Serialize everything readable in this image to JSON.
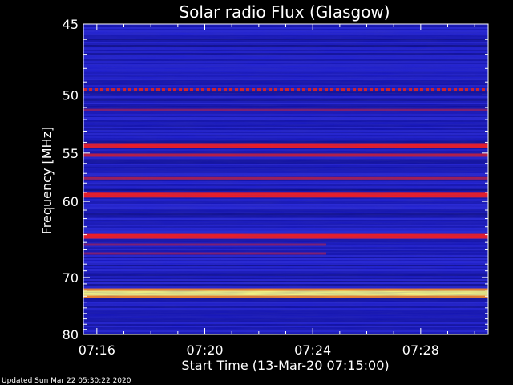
{
  "chart_data": {
    "type": "heatmap",
    "title": "Solar radio Flux (Glasgow)",
    "xlabel": "Start Time (13-Mar-20 07:15:00)",
    "ylabel": "Frequency [MHz]",
    "footer": "Updated Sun Mar 22 05:30:22 2020",
    "x_ticks": [
      {
        "label": "07:16",
        "minutes": 1
      },
      {
        "label": "07:20",
        "minutes": 5
      },
      {
        "label": "07:24",
        "minutes": 9
      },
      {
        "label": "07:28",
        "minutes": 13
      }
    ],
    "y_ticks": [
      45,
      50,
      55,
      60,
      70,
      80
    ],
    "x_range_minutes": [
      0.5,
      15.5
    ],
    "y_range_mhz": [
      45,
      80
    ],
    "y_scale": "reciprocal",
    "background_color": "#1a1ac8",
    "emission_bands": [
      {
        "freq_mhz": 49.6,
        "intensity": "medium",
        "color": "#e8201a",
        "dashed": true
      },
      {
        "freq_mhz": 51.2,
        "intensity": "low",
        "color": "#8a1a6a"
      },
      {
        "freq_mhz": 54.3,
        "intensity": "high",
        "color": "#ff1a1a"
      },
      {
        "freq_mhz": 55.2,
        "intensity": "medium",
        "color": "#c81a3a"
      },
      {
        "freq_mhz": 57.5,
        "intensity": "low",
        "color": "#b01a4a"
      },
      {
        "freq_mhz": 59.3,
        "intensity": "high",
        "color": "#ff1a1a"
      },
      {
        "freq_mhz": 64.2,
        "intensity": "high",
        "color": "#ff1a1a"
      },
      {
        "freq_mhz": 65.3,
        "intensity": "low",
        "color": "#8a1a6a",
        "start_minutes": 0.5,
        "end_minutes": 9.5
      },
      {
        "freq_mhz": 66.5,
        "intensity": "low",
        "color": "#8a1a6a",
        "start_minutes": 0.5,
        "end_minutes": 9.5
      },
      {
        "freq_mhz": 72.5,
        "intensity": "max",
        "color": "#ffff80"
      }
    ],
    "grid": false
  }
}
